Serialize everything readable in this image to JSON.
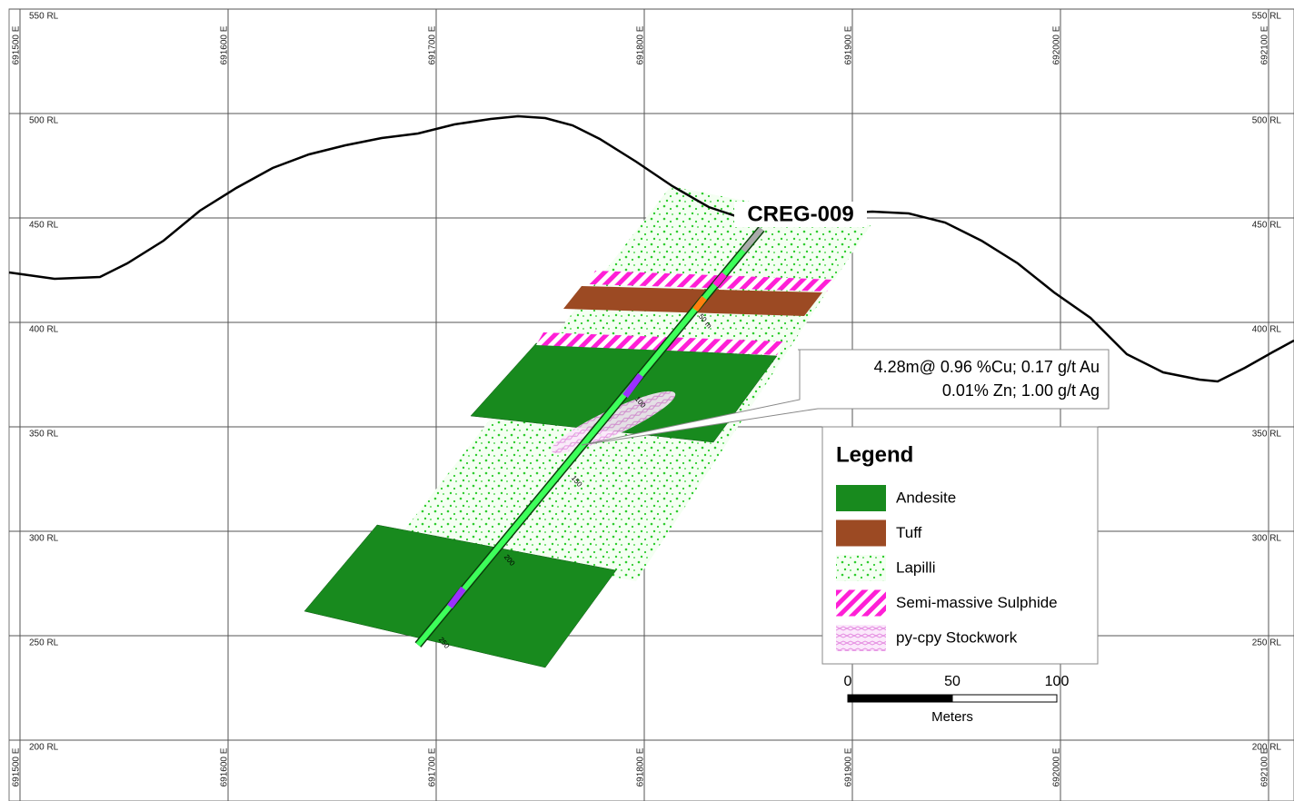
{
  "grid": {
    "eastings": [
      "691500 E",
      "691600 E",
      "691700 E",
      "691800 E",
      "691900 E",
      "692000 E",
      "692100 E"
    ],
    "levels": [
      "550 RL",
      "500 RL",
      "450 RL",
      "400 RL",
      "350 RL",
      "300 RL",
      "250 RL",
      "200 RL"
    ]
  },
  "hole": {
    "name": "CREG-009",
    "depths": [
      "50 m",
      "100",
      "150",
      "200",
      "250"
    ]
  },
  "intercept": {
    "line1": "4.28m@  0.96 %Cu; 0.17 g/t Au",
    "line2": "0.01% Zn; 1.00 g/t Ag"
  },
  "legend": {
    "title": "Legend",
    "items": [
      "Andesite",
      "Tuff",
      "Lapilli",
      "Semi-massive Sulphide",
      "py-cpy Stockwork"
    ]
  },
  "scale": {
    "labels": [
      "0",
      "50",
      "100"
    ],
    "unit": "Meters"
  }
}
